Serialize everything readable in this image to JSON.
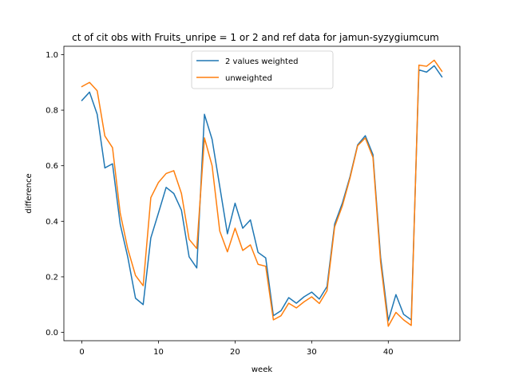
{
  "chart_data": {
    "type": "line",
    "title": "ct of cit obs with Fruits_unripe = 1 or 2 and ref data for jamun-syzygiumcum",
    "xlabel": "week",
    "ylabel": "difference",
    "xlim": [
      -2.35,
      49.35
    ],
    "ylim": [
      -0.03,
      1.03
    ],
    "xticks": [
      0,
      10,
      20,
      30,
      40
    ],
    "yticks": [
      0.0,
      0.2,
      0.4,
      0.6,
      0.8,
      1.0
    ],
    "xtick_labels": [
      "0",
      "10",
      "20",
      "30",
      "40"
    ],
    "ytick_labels": [
      "0.0",
      "0.2",
      "0.4",
      "0.6",
      "0.8",
      "1.0"
    ],
    "grid": false,
    "legend_position": "top-center",
    "x": [
      0,
      1,
      2,
      3,
      4,
      5,
      6,
      7,
      8,
      9,
      10,
      11,
      12,
      13,
      14,
      15,
      16,
      17,
      18,
      19,
      20,
      21,
      22,
      23,
      24,
      25,
      26,
      27,
      28,
      29,
      30,
      31,
      32,
      33,
      34,
      35,
      36,
      37,
      38,
      39,
      40,
      41,
      42,
      43,
      44,
      45,
      46,
      47
    ],
    "series": [
      {
        "name": "2 values weighted",
        "color": "#1f77b4",
        "values": [
          0.835,
          0.865,
          0.785,
          0.592,
          0.607,
          0.39,
          0.27,
          0.123,
          0.1,
          0.34,
          0.43,
          0.522,
          0.5,
          0.44,
          0.272,
          0.232,
          0.785,
          0.695,
          0.525,
          0.355,
          0.465,
          0.375,
          0.405,
          0.288,
          0.268,
          0.06,
          0.078,
          0.125,
          0.105,
          0.128,
          0.145,
          0.12,
          0.165,
          0.39,
          0.465,
          0.56,
          0.675,
          0.708,
          0.64,
          0.27,
          0.042,
          0.136,
          0.065,
          0.045,
          0.945,
          0.937,
          0.96,
          0.92
        ]
      },
      {
        "name": "unweighted",
        "color": "#ff7f0e",
        "values": [
          0.885,
          0.9,
          0.87,
          0.707,
          0.665,
          0.43,
          0.3,
          0.205,
          0.168,
          0.485,
          0.54,
          0.572,
          0.582,
          0.5,
          0.335,
          0.302,
          0.7,
          0.6,
          0.365,
          0.29,
          0.375,
          0.295,
          0.315,
          0.245,
          0.238,
          0.045,
          0.06,
          0.105,
          0.088,
          0.11,
          0.128,
          0.104,
          0.15,
          0.38,
          0.455,
          0.555,
          0.672,
          0.7,
          0.63,
          0.252,
          0.022,
          0.072,
          0.045,
          0.025,
          0.962,
          0.958,
          0.98,
          0.94
        ]
      }
    ]
  }
}
